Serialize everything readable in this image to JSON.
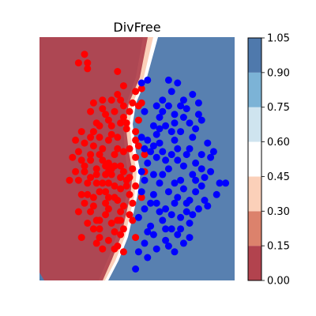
{
  "chart_data": {
    "type": "scatter",
    "title": "DivFree",
    "xlabel": "",
    "ylabel": "",
    "axes_visible": false,
    "background": "filled decision contour",
    "contour_colors": [
      "#b2434e",
      "#dc826c",
      "#fbd0b9",
      "#ffffff",
      "#cfe4ef",
      "#7cb3d6",
      "#4f79ac"
    ],
    "colorbar": {
      "ticks": [
        "0.00",
        "0.15",
        "0.30",
        "0.45",
        "0.60",
        "0.75",
        "0.90",
        "1.05"
      ],
      "levels": [
        0.0,
        0.15,
        0.3,
        0.45,
        0.6,
        0.75,
        0.9,
        1.05
      ]
    },
    "series": [
      {
        "color": "#ff0000",
        "points": [
          [
            0.2,
            0.9
          ],
          [
            0.3,
            0.7
          ],
          [
            0.5,
            0.4
          ],
          [
            -1.5,
            3.9
          ],
          [
            -1.4,
            3.4
          ],
          [
            -0.9,
            2.3
          ],
          [
            -0.4,
            3.3
          ],
          [
            -0.2,
            2.1
          ],
          [
            -0.8,
            1.8
          ],
          [
            -1.0,
            1.4
          ],
          [
            -0.6,
            1.1
          ],
          [
            -0.3,
            1.5
          ],
          [
            -0.5,
            0.4
          ],
          [
            -0.7,
            0.9
          ],
          [
            -0.8,
            0.0
          ],
          [
            -0.3,
            0.0
          ],
          [
            -1.3,
            0.2
          ],
          [
            -0.1,
            -0.5
          ],
          [
            -0.9,
            -0.6
          ],
          [
            -0.3,
            -0.8
          ],
          [
            -1.4,
            -1.0
          ],
          [
            -0.8,
            -1.3
          ],
          [
            -0.2,
            -1.4
          ],
          [
            -0.4,
            -1.9
          ],
          [
            -1.2,
            -2.2
          ],
          [
            -0.3,
            -2.4
          ],
          [
            -0.2,
            -3.0
          ],
          [
            -0.4,
            -2.8
          ],
          [
            -0.7,
            -2.6
          ],
          [
            -1.0,
            -1.9
          ],
          [
            -1.1,
            -0.3
          ],
          [
            -0.6,
            -0.3
          ],
          [
            -0.2,
            -0.2
          ],
          [
            -0.5,
            -0.7
          ],
          [
            -0.4,
            -1.2
          ],
          [
            -1.0,
            -0.9
          ],
          [
            -1.7,
            -0.5
          ],
          [
            -1.2,
            0.7
          ],
          [
            -1.0,
            1.0
          ],
          [
            -0.4,
            0.6
          ],
          [
            -0.9,
            0.6
          ],
          [
            -1.1,
            -0.1
          ],
          [
            -1.5,
            -0.2
          ],
          [
            -1.6,
            1.2
          ],
          [
            -1.3,
            1.9
          ],
          [
            -0.2,
            1.7
          ],
          [
            -0.7,
            -0.2
          ],
          [
            -0.2,
            0.5
          ],
          [
            -0.8,
            -0.3
          ],
          [
            -1.7,
            0.5
          ],
          [
            -0.3,
            2.3
          ],
          [
            -0.7,
            -1.5
          ],
          [
            -1.3,
            0.4
          ],
          [
            -1.7,
            -1.6
          ],
          [
            -1.1,
            -1.9
          ],
          [
            -0.3,
            -1.9
          ],
          [
            -0.7,
            -0.6
          ],
          [
            -1.2,
            -1.4
          ],
          [
            -0.6,
            -0.1
          ],
          [
            -1.5,
            0.8
          ],
          [
            -0.1,
            -0.7
          ],
          [
            -0.4,
            2.5
          ],
          [
            -1.0,
            -2.5
          ],
          [
            -0.9,
            -2.9
          ],
          [
            -1.6,
            -2.5
          ],
          [
            -1.4,
            -2.0
          ],
          [
            -0.3,
            -1.6
          ],
          [
            -0.7,
            1.6
          ],
          [
            -2.0,
            -0.5
          ],
          [
            -0.7,
            0.1
          ],
          [
            -1.9,
            0.3
          ],
          [
            -0.2,
            2.8
          ],
          [
            -0.5,
            -2.3
          ],
          [
            -1.1,
            -0.6
          ],
          [
            -1.2,
            1.2
          ],
          [
            -1.4,
            3.6
          ],
          [
            -1.7,
            3.6
          ],
          [
            0.2,
            -2.5
          ],
          [
            0.1,
            -1.3
          ],
          [
            0.0,
            -1.0
          ],
          [
            0.0,
            -0.4
          ],
          [
            0.1,
            -0.1
          ],
          [
            0.2,
            0.3
          ],
          [
            0.0,
            0.6
          ],
          [
            0.2,
            1.2
          ],
          [
            0.3,
            1.6
          ],
          [
            -0.1,
            1.5
          ],
          [
            0.1,
            2.2
          ],
          [
            0.4,
            2.7
          ],
          [
            0.2,
            2.6
          ],
          [
            0.3,
            2.1
          ],
          [
            0.0,
            1.9
          ],
          [
            -0.6,
            1.4
          ],
          [
            -1.1,
            1.5
          ],
          [
            -0.9,
            0.2
          ],
          [
            -0.5,
            0.0
          ],
          [
            -1.3,
            -0.4
          ],
          [
            -1.8,
            -0.2
          ],
          [
            -1.4,
            -0.6
          ],
          [
            -1.6,
            -1.0
          ],
          [
            -1.2,
            -1.1
          ],
          [
            -0.8,
            -1.7
          ],
          [
            -1.0,
            -2.2
          ],
          [
            -0.6,
            -2.0
          ],
          [
            -1.3,
            -1.6
          ],
          [
            -1.1,
            -2.7
          ],
          [
            -0.5,
            -2.9
          ],
          [
            -1.5,
            0.0
          ],
          [
            -0.6,
            2.3
          ],
          [
            0.5,
            -0.2
          ],
          [
            0.2,
            -0.7
          ],
          [
            0.4,
            -1.1
          ],
          [
            0.1,
            -1.9
          ],
          [
            -0.2,
            -2.2
          ],
          [
            -0.5,
            -1.1
          ],
          [
            -0.8,
            -0.9
          ],
          [
            -1.5,
            -1.3
          ],
          [
            -1.8,
            0.9
          ],
          [
            -1.0,
            0.4
          ],
          [
            -0.3,
            -0.4
          ],
          [
            -0.4,
            1.0
          ],
          [
            -1.2,
            2.2
          ],
          [
            -0.9,
            2.0
          ],
          [
            -0.5,
            1.9
          ],
          [
            -0.1,
            1.3
          ],
          [
            -1.3,
            1.0
          ],
          [
            -1.6,
            0.2
          ],
          [
            -0.7,
            -1.1
          ],
          [
            0.0,
            -1.7
          ],
          [
            0.4,
            2.2
          ]
        ]
      },
      {
        "color": "#0000ff",
        "points": [
          [
            1.3,
            3.0
          ],
          [
            1.6,
            2.9
          ],
          [
            0.4,
            2.9
          ],
          [
            1.4,
            2.6
          ],
          [
            2.1,
            2.5
          ],
          [
            1.1,
            2.3
          ],
          [
            2.3,
            2.2
          ],
          [
            1.0,
            1.7
          ],
          [
            1.8,
            1.7
          ],
          [
            2.4,
            1.6
          ],
          [
            0.8,
            1.4
          ],
          [
            1.4,
            1.2
          ],
          [
            2.1,
            1.0
          ],
          [
            1.0,
            0.8
          ],
          [
            0.7,
            0.5
          ],
          [
            1.6,
            0.6
          ],
          [
            2.4,
            0.4
          ],
          [
            1.2,
            0.2
          ],
          [
            1.8,
            0.0
          ],
          [
            0.6,
            0.1
          ],
          [
            2.1,
            -0.3
          ],
          [
            1.1,
            -0.3
          ],
          [
            1.7,
            -0.5
          ],
          [
            3.0,
            -0.6
          ],
          [
            2.4,
            -0.7
          ],
          [
            1.3,
            -0.9
          ],
          [
            2.0,
            -1.2
          ],
          [
            0.8,
            -1.0
          ],
          [
            1.5,
            -1.3
          ],
          [
            2.3,
            -1.5
          ],
          [
            1.0,
            -1.6
          ],
          [
            1.7,
            -1.8
          ],
          [
            0.7,
            -2.1
          ],
          [
            1.4,
            -2.2
          ],
          [
            2.0,
            -2.0
          ],
          [
            1.2,
            -2.6
          ],
          [
            1.8,
            -2.7
          ],
          [
            0.9,
            -2.9
          ],
          [
            1.5,
            -3.0
          ],
          [
            0.6,
            -3.2
          ],
          [
            0.9,
            1.1
          ],
          [
            1.5,
            0.9
          ],
          [
            2.6,
            0.8
          ],
          [
            1.9,
            0.4
          ],
          [
            1.3,
            -0.1
          ],
          [
            2.7,
            -0.2
          ],
          [
            1.0,
            -0.6
          ],
          [
            2.2,
            -0.9
          ],
          [
            1.6,
            -1.1
          ],
          [
            2.5,
            -1.2
          ],
          [
            0.7,
            -1.3
          ],
          [
            1.2,
            -1.5
          ],
          [
            1.9,
            -1.6
          ],
          [
            1.1,
            -1.9
          ],
          [
            0.8,
            -2.4
          ],
          [
            1.6,
            -2.4
          ],
          [
            2.0,
            -2.5
          ],
          [
            1.3,
            -2.8
          ],
          [
            0.5,
            -2.7
          ],
          [
            2.2,
            0.1
          ],
          [
            2.5,
            -0.4
          ],
          [
            1.8,
            -0.8
          ],
          [
            0.9,
            0.3
          ],
          [
            1.4,
            0.4
          ],
          [
            2.0,
            0.6
          ],
          [
            1.7,
            1.2
          ],
          [
            1.2,
            1.4
          ],
          [
            2.2,
            1.3
          ],
          [
            0.6,
            0.9
          ],
          [
            1.9,
            2.0
          ],
          [
            1.5,
            1.8
          ],
          [
            1.1,
            1.9
          ],
          [
            0.9,
            2.1
          ],
          [
            2.0,
            1.5
          ],
          [
            1.3,
            2.1
          ],
          [
            0.5,
            1.9
          ],
          [
            0.4,
            1.0
          ],
          [
            0.5,
            0.6
          ],
          [
            0.4,
            -0.2
          ],
          [
            0.5,
            -0.5
          ],
          [
            0.4,
            -0.9
          ],
          [
            0.5,
            -1.5
          ],
          [
            0.3,
            -1.8
          ],
          [
            0.6,
            -2.3
          ],
          [
            0.3,
            -3.0
          ],
          [
            0.2,
            -3.6
          ],
          [
            0.6,
            3.0
          ],
          [
            1.8,
            2.3
          ],
          [
            2.7,
            0.3
          ],
          [
            3.2,
            -0.6
          ],
          [
            2.9,
            -1.0
          ],
          [
            2.4,
            -0.1
          ],
          [
            2.8,
            0.5
          ],
          [
            2.3,
            1.8
          ],
          [
            1.7,
            2.1
          ],
          [
            1.5,
            1.5
          ],
          [
            1.0,
            1.3
          ],
          [
            0.8,
            0.7
          ],
          [
            1.1,
            0.5
          ],
          [
            1.6,
            0.2
          ],
          [
            2.2,
            -0.5
          ],
          [
            1.9,
            -1.3
          ],
          [
            1.4,
            -1.7
          ],
          [
            0.9,
            -1.3
          ],
          [
            1.2,
            -2.2
          ],
          [
            1.7,
            -2.2
          ],
          [
            2.1,
            -1.7
          ],
          [
            2.6,
            -1.4
          ],
          [
            1.5,
            -0.6
          ],
          [
            0.8,
            -0.3
          ]
        ]
      }
    ],
    "xlim": [
      -3.0,
      3.5
    ],
    "ylim": [
      -4.0,
      4.5
    ]
  }
}
